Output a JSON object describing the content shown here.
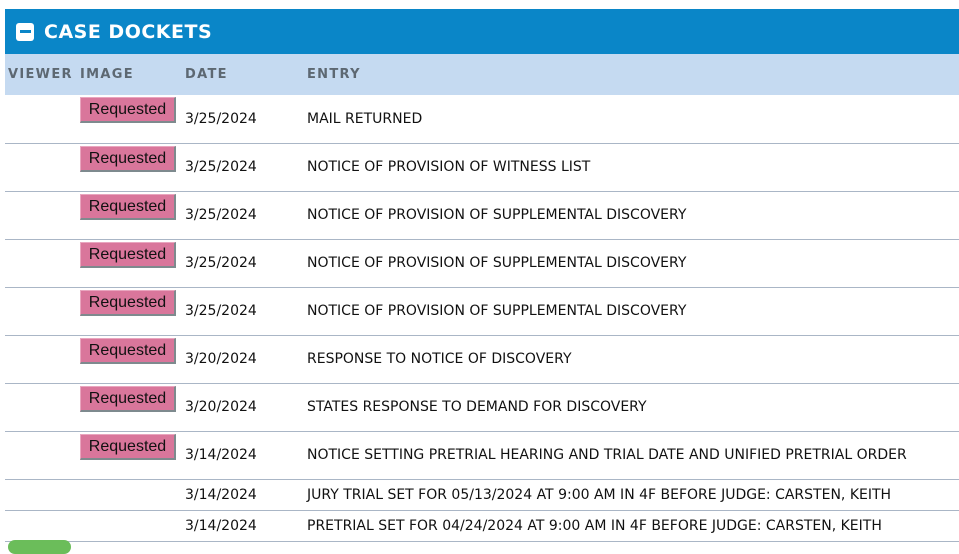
{
  "panel": {
    "title": "CASE DOCKETS"
  },
  "columns": {
    "viewer": "VIEWER",
    "image": "IMAGE",
    "date": "DATE",
    "entry": "ENTRY"
  },
  "rows": [
    {
      "image": "Requested",
      "date": "3/25/2024",
      "entry": "MAIL RETURNED"
    },
    {
      "image": "Requested",
      "date": "3/25/2024",
      "entry": "NOTICE OF PROVISION OF WITNESS LIST"
    },
    {
      "image": "Requested",
      "date": "3/25/2024",
      "entry": "NOTICE OF PROVISION OF SUPPLEMENTAL DISCOVERY"
    },
    {
      "image": "Requested",
      "date": "3/25/2024",
      "entry": "NOTICE OF PROVISION OF SUPPLEMENTAL DISCOVERY"
    },
    {
      "image": "Requested",
      "date": "3/25/2024",
      "entry": "NOTICE OF PROVISION OF SUPPLEMENTAL DISCOVERY"
    },
    {
      "image": "Requested",
      "date": "3/20/2024",
      "entry": "RESPONSE TO NOTICE OF DISCOVERY"
    },
    {
      "image": "Requested",
      "date": "3/20/2024",
      "entry": "STATES RESPONSE TO DEMAND FOR DISCOVERY"
    },
    {
      "image": "Requested",
      "date": "3/14/2024",
      "entry": "NOTICE SETTING PRETRIAL HEARING AND TRIAL DATE AND UNIFIED PRETRIAL ORDER"
    },
    {
      "image": "",
      "date": "3/14/2024",
      "entry": "JURY TRIAL SET FOR 05/13/2024 AT 9:00 AM IN 4F BEFORE JUDGE: CARSTEN, KEITH"
    },
    {
      "image": "",
      "date": "3/14/2024",
      "entry": "PRETRIAL SET FOR 04/24/2024 AT 9:00 AM IN 4F BEFORE JUDGE: CARSTEN, KEITH"
    }
  ],
  "colors": {
    "header": "#0a86c8",
    "column_header": "#c5daf1",
    "requested_button": "#d9769b"
  }
}
